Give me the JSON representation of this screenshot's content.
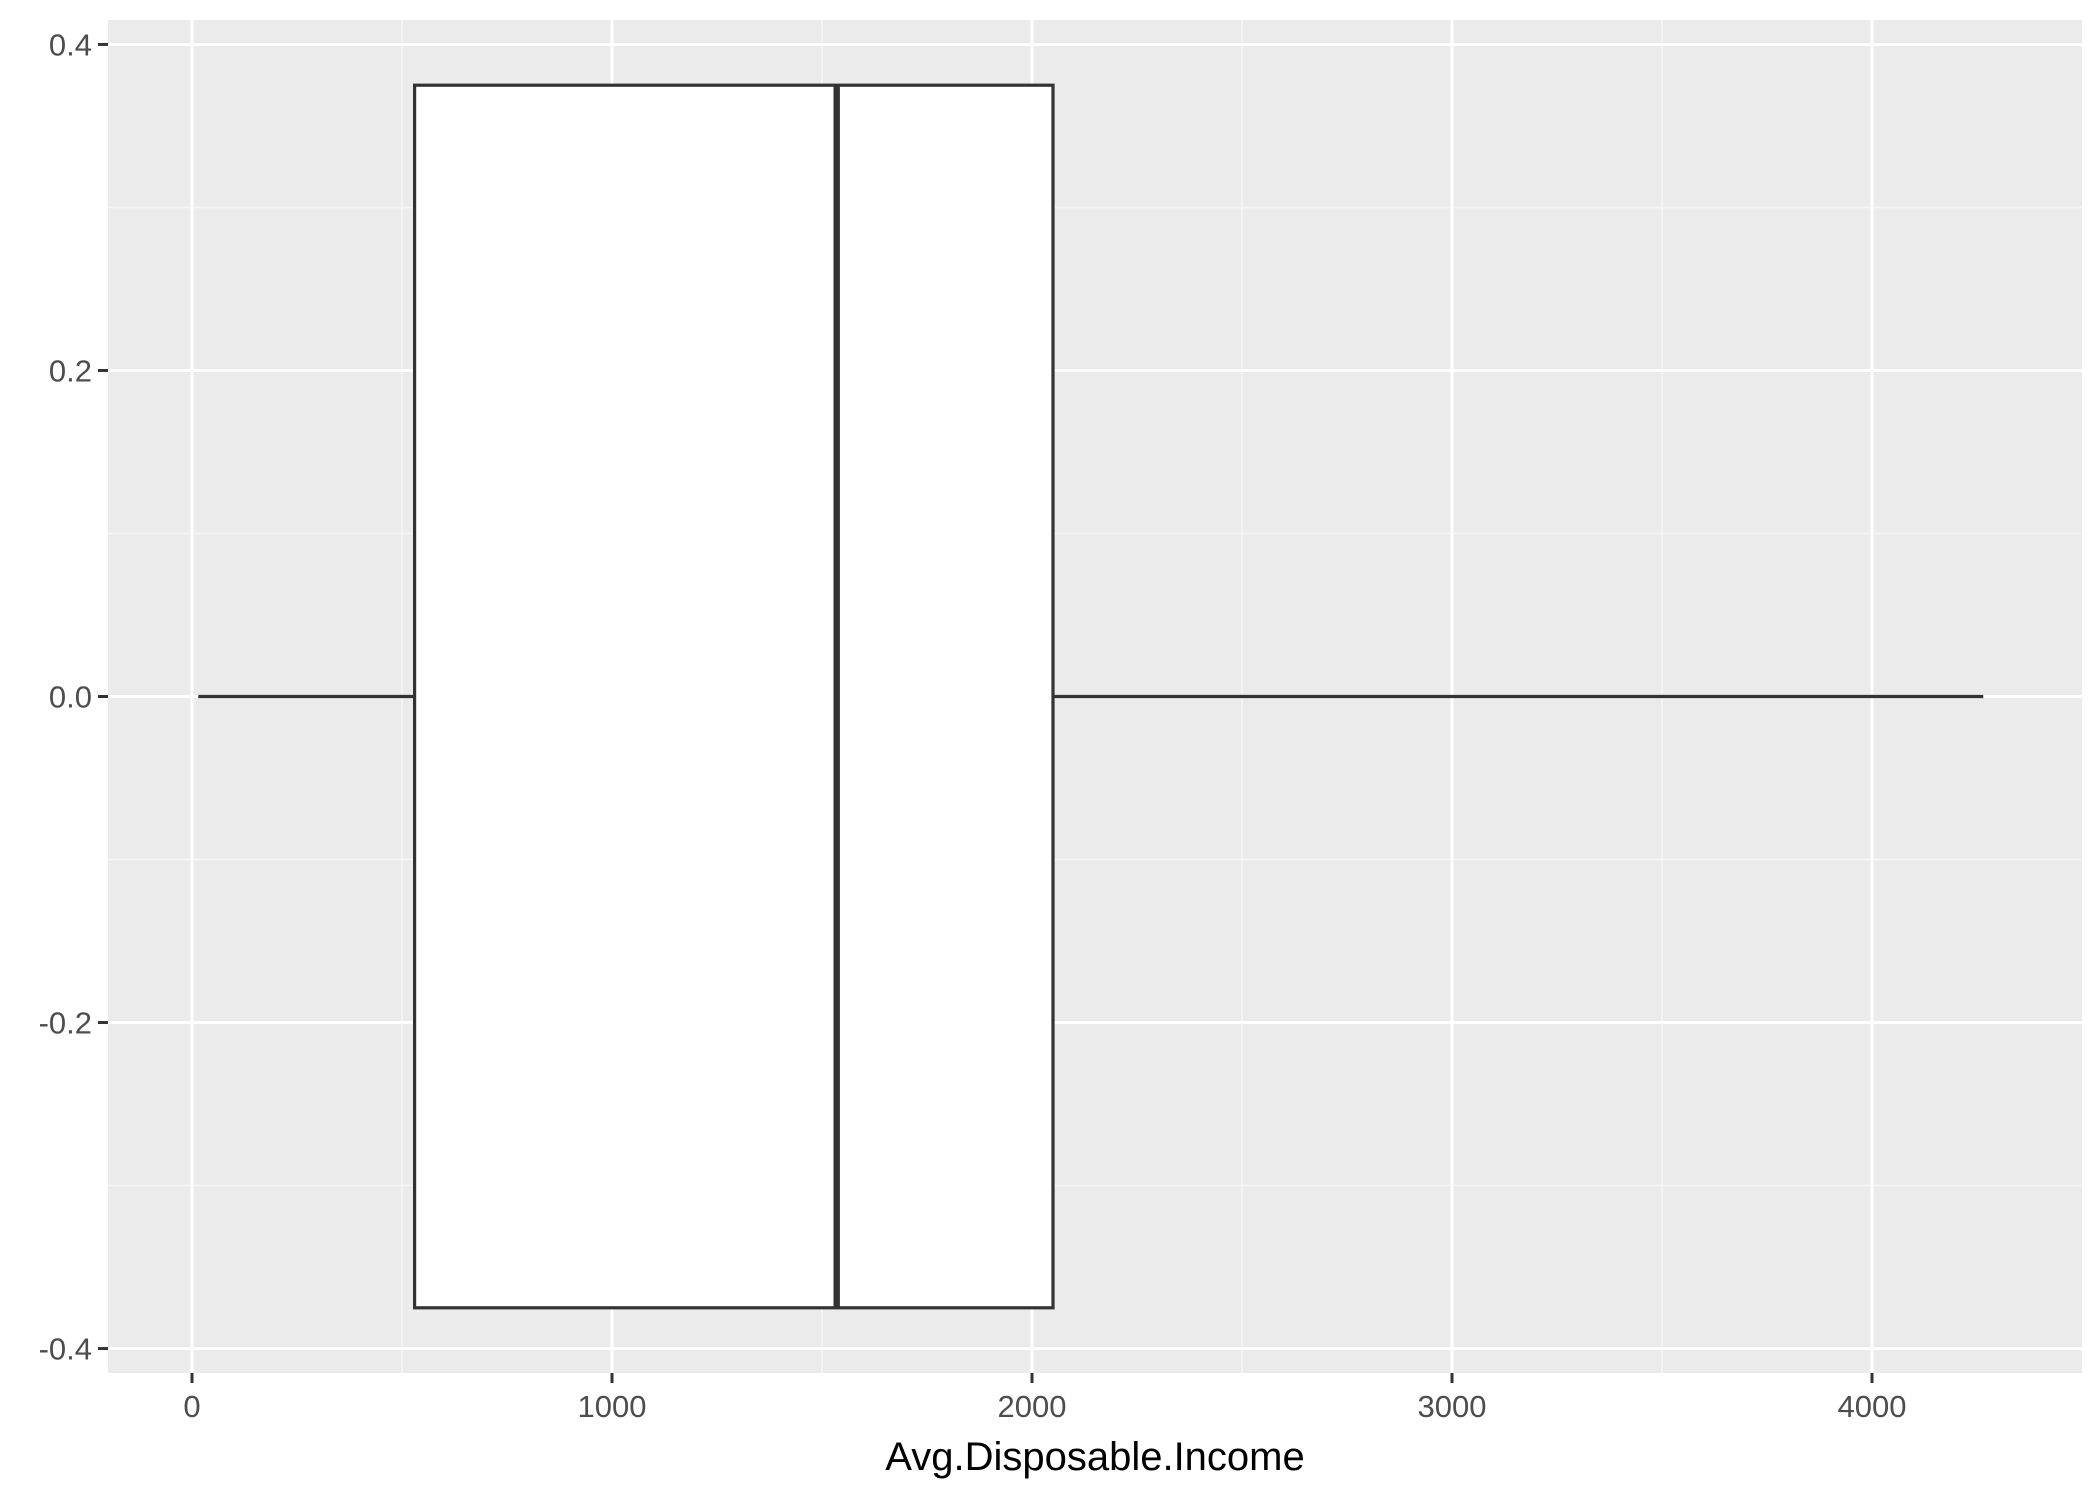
{
  "chart_data": {
    "type": "boxplot",
    "orientation": "horizontal",
    "xlabel": "Avg.Disposable.Income",
    "ylabel": "",
    "xlim": [
      -200,
      4500
    ],
    "ylim": [
      -0.415,
      0.415
    ],
    "x_ticks": [
      0,
      1000,
      2000,
      3000,
      4000
    ],
    "x_tick_labels": [
      "0",
      "1000",
      "2000",
      "3000",
      "4000"
    ],
    "y_ticks": [
      0.4,
      0.2,
      0.0,
      -0.2,
      -0.4
    ],
    "y_tick_labels": [
      "0.4",
      "0.2",
      "0.0",
      "-0.2",
      "-0.4"
    ],
    "box": {
      "whisker_low": 15,
      "q1": 530,
      "median": 1535,
      "q3": 2050,
      "whisker_high": 4265,
      "y_center": 0.0,
      "box_half_height": 0.375
    },
    "grid": true,
    "legend": "none",
    "colors": {
      "panel_background": "#ebebeb",
      "grid_major": "#ffffff",
      "grid_minor": "#f5f5f5",
      "box_fill": "#ffffff",
      "box_outline": "#333333",
      "tick_label": "#4d4d4d",
      "axis_title": "#000000"
    }
  }
}
